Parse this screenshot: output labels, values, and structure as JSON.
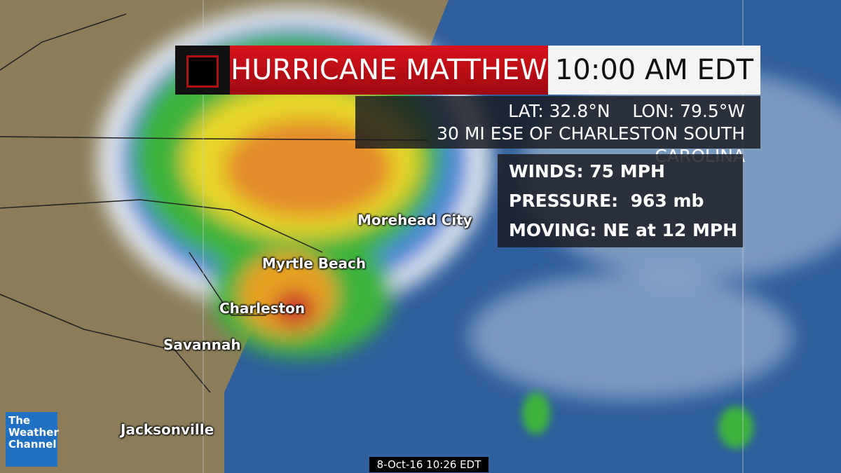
{
  "header": {
    "title": "HURRICANE MATTHEW",
    "time": "10:00 AM EDT"
  },
  "location": {
    "lat": "LAT: 32.8°N",
    "lon": "LON: 79.5°W",
    "description": "30 MI ESE OF CHARLESTON SOUTH CAROLINA"
  },
  "conditions": {
    "winds": "WINDS: 75 MPH",
    "pressure": "PRESSURE:  963 mb",
    "moving": "MOVING: NE at 12 MPH"
  },
  "cities": [
    "Morehead City",
    "Myrtle Beach",
    "Charleston",
    "Savannah",
    "Jacksonville"
  ],
  "logo": [
    "The",
    "Weather",
    "Channel"
  ],
  "timestamp": "8-Oct-16 10:26 EDT"
}
